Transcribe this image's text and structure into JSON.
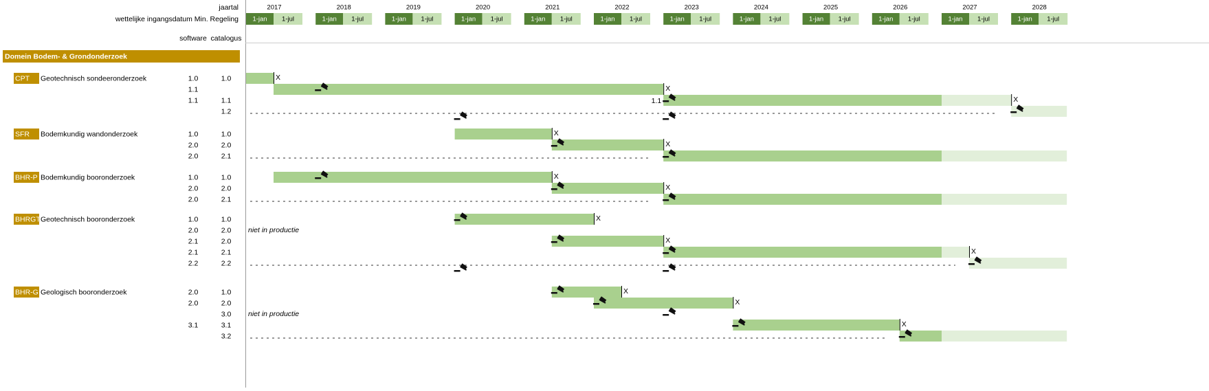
{
  "header": {
    "year_label": "jaartal",
    "date_label": "wettelijke ingangsdatum Min. Regeling",
    "software_label": "software",
    "catalogus_label": "catalogus",
    "years": [
      2017,
      2018,
      2019,
      2020,
      2021,
      2022,
      2023,
      2024,
      2025,
      2026,
      2027,
      2028
    ],
    "jan_label": "1-jan",
    "jul_label": "1-jul"
  },
  "domain": "Domein Bodem- & Grondonderzoek",
  "colors": {
    "active": "#a9d08e",
    "future": "#e2efda",
    "header_dark": "#548235",
    "header_light": "#c6e0b4",
    "gold": "#bf8f00"
  },
  "groups": [
    {
      "code": "CPT",
      "name": "Geotechnisch sondeeronderzoek",
      "rows": [
        {
          "software": "1.0",
          "catalogus": "1.0",
          "bars": [
            {
              "start": 2017,
              "end": 2017.5,
              "color": "active",
              "end_mark": "X"
            }
          ],
          "gavels": []
        },
        {
          "software": "1.1",
          "catalogus": null,
          "bars": [
            {
              "start": 2017.5,
              "end": 2023,
              "color": "active",
              "end_mark": "X"
            }
          ],
          "gavels": [
            2018
          ]
        },
        {
          "software": "1.1",
          "catalogus": "1.1",
          "before_label": "1.1",
          "bars": [
            {
              "start": 2023,
              "end": 2027,
              "color": "active"
            },
            {
              "start": 2027,
              "end": 2028,
              "color": "future",
              "end_mark": "X"
            }
          ],
          "gavels": [
            2023
          ]
        },
        {
          "software": null,
          "catalogus": "1.2",
          "dashed": true,
          "bars": [
            {
              "start": 2028,
              "end": 2028.8,
              "color": "future"
            }
          ],
          "gavels": [
            2028
          ],
          "lower_gavels": [
            2020,
            2023
          ]
        }
      ]
    },
    {
      "code": "SFR",
      "name": "Bodemkundig wandonderzoek",
      "rows": [
        {
          "software": "1.0",
          "catalogus": "1.0",
          "bars": [
            {
              "start": 2020,
              "end": 2021.5,
              "color": "active",
              "end_mark": "X"
            }
          ],
          "gavels": []
        },
        {
          "software": "2.0",
          "catalogus": "2.0",
          "bars": [
            {
              "start": 2021.5,
              "end": 2023,
              "color": "active",
              "end_mark": "X"
            }
          ],
          "gavels": [
            2021.5
          ]
        },
        {
          "software": "2.0",
          "catalogus": "2.1",
          "dashed": true,
          "bars": [
            {
              "start": 2023,
              "end": 2027,
              "color": "active"
            },
            {
              "start": 2027,
              "end": 2028.8,
              "color": "future"
            }
          ],
          "gavels": [
            2023
          ]
        }
      ]
    },
    {
      "code": "BHR-P",
      "name": "Bodemkundig booronderzoek",
      "rows": [
        {
          "software": "1.0",
          "catalogus": "1.0",
          "bars": [
            {
              "start": 2017.5,
              "end": 2021.5,
              "color": "active",
              "end_mark": "X"
            }
          ],
          "gavels": [
            2018
          ]
        },
        {
          "software": "2.0",
          "catalogus": "2.0",
          "bars": [
            {
              "start": 2021.5,
              "end": 2023,
              "color": "active",
              "end_mark": "X"
            }
          ],
          "gavels": [
            2021.5
          ]
        },
        {
          "software": "2.0",
          "catalogus": "2.1",
          "dashed": true,
          "bars": [
            {
              "start": 2023,
              "end": 2027,
              "color": "active"
            },
            {
              "start": 2027,
              "end": 2028.8,
              "color": "future"
            }
          ],
          "gavels": [
            2023
          ]
        }
      ]
    },
    {
      "code": "BHRGT",
      "name": "Geotechnisch booronderzoek",
      "rows": [
        {
          "software": "1.0",
          "catalogus": "1.0",
          "bars": [
            {
              "start": 2020,
              "end": 2022,
              "color": "active",
              "end_mark": "X"
            }
          ],
          "gavels": [
            2020
          ]
        },
        {
          "software": "2.0",
          "catalogus": "2.0",
          "note": "niet in productie",
          "bars": [],
          "gavels": []
        },
        {
          "software": "2.1",
          "catalogus": "2.0",
          "bars": [
            {
              "start": 2021.5,
              "end": 2023,
              "color": "active",
              "end_mark": "X"
            }
          ],
          "gavels": [
            2021.5
          ]
        },
        {
          "software": "2.1",
          "catalogus": "2.1",
          "bars": [
            {
              "start": 2023,
              "end": 2027,
              "color": "active"
            },
            {
              "start": 2027,
              "end": 2027.5,
              "color": "future",
              "end_mark": "X"
            }
          ],
          "gavels": [
            2023
          ]
        },
        {
          "software": "2.2",
          "catalogus": "2.2",
          "dashed": true,
          "bars": [
            {
              "start": 2027.5,
              "end": 2028.8,
              "color": "future"
            }
          ],
          "gavels": [
            2027.5
          ],
          "lower_gavels": [
            2020,
            2023
          ]
        }
      ]
    },
    {
      "code": "BHR-G",
      "name": "Geologisch booronderzoek",
      "rows": [
        {
          "software": "2.0",
          "catalogus": "1.0",
          "bars": [
            {
              "start": 2021.5,
              "end": 2022.5,
              "color": "active",
              "end_mark": "X"
            }
          ],
          "gavels": [
            2021.5
          ]
        },
        {
          "software": "2.0",
          "catalogus": "2.0",
          "bars": [
            {
              "start": 2022,
              "end": 2024,
              "color": "active",
              "end_mark": "X"
            }
          ],
          "gavels": [
            2022
          ]
        },
        {
          "software": null,
          "catalogus": "3.0",
          "note": "niet in productie",
          "bars": [],
          "gavels": [
            2023
          ]
        },
        {
          "software": "3.1",
          "catalogus": "3.1",
          "bars": [
            {
              "start": 2024,
              "end": 2026.5,
              "color": "active",
              "end_mark": "X"
            }
          ],
          "gavels": [
            2024
          ]
        },
        {
          "software": null,
          "catalogus": "3.2",
          "dashed": true,
          "bars": [
            {
              "start": 2026.5,
              "end": 2027,
              "color": "active"
            },
            {
              "start": 2027,
              "end": 2028.8,
              "color": "future"
            }
          ],
          "gavels": [
            2026.5
          ]
        }
      ]
    }
  ]
}
